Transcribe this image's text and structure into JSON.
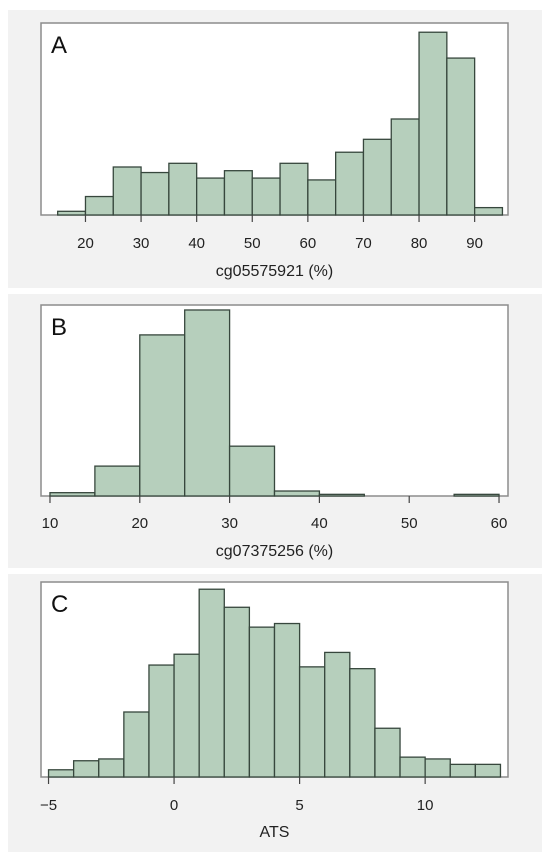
{
  "colors": {
    "bar_fill": "#b6cfbc",
    "bar_stroke": "#37473d",
    "panel_bg": "#f2f2f2",
    "plot_bg": "#ffffff",
    "frame": "#8c8c8c"
  },
  "chart_data": [
    {
      "type": "bar",
      "panel_label": "A",
      "xlabel": "cg05575921 (%)",
      "ylabel": "",
      "grid": false,
      "bin_width": 5,
      "bin_starts": [
        15,
        20,
        25,
        30,
        35,
        40,
        45,
        50,
        55,
        60,
        65,
        70,
        75,
        80,
        85,
        90
      ],
      "values": [
        2,
        10,
        26,
        23,
        28,
        20,
        24,
        20,
        28,
        19,
        34,
        41,
        52,
        99,
        85,
        4
      ],
      "xlim": [
        12,
        96
      ],
      "ylim": [
        0,
        104
      ],
      "xticks": [
        20,
        30,
        40,
        50,
        60,
        70,
        80,
        90
      ],
      "xtick_labels": [
        "20",
        "30",
        "40",
        "50",
        "60",
        "70",
        "80",
        "90"
      ]
    },
    {
      "type": "bar",
      "panel_label": "B",
      "xlabel": "cg07375256 (%)",
      "ylabel": "",
      "grid": false,
      "bin_width": 5,
      "bin_starts": [
        10,
        15,
        20,
        25,
        30,
        35,
        40,
        45,
        50,
        55
      ],
      "values": [
        2,
        18,
        97,
        112,
        30,
        3,
        1,
        0,
        0,
        1
      ],
      "xlim": [
        9,
        61
      ],
      "ylim": [
        0,
        115
      ],
      "xticks": [
        10,
        20,
        30,
        40,
        50,
        60
      ],
      "xtick_labels": [
        "10",
        "20",
        "30",
        "40",
        "50",
        "60"
      ]
    },
    {
      "type": "bar",
      "panel_label": "C",
      "xlabel": "ATS",
      "ylabel": "",
      "grid": false,
      "bin_width": 1,
      "bin_starts": [
        -5,
        -4,
        -3,
        -2,
        -1,
        0,
        1,
        2,
        3,
        4,
        5,
        6,
        7,
        8,
        9,
        10,
        11,
        12
      ],
      "values": [
        4,
        9,
        10,
        36,
        62,
        68,
        104,
        94,
        83,
        85,
        61,
        69,
        60,
        27,
        11,
        10,
        7,
        7
      ],
      "xlim": [
        -5.3,
        13.3
      ],
      "ylim": [
        0,
        108
      ],
      "xticks": [
        -5,
        0,
        5,
        10
      ],
      "xtick_labels": [
        "−5",
        "0",
        "5",
        "10"
      ]
    }
  ]
}
